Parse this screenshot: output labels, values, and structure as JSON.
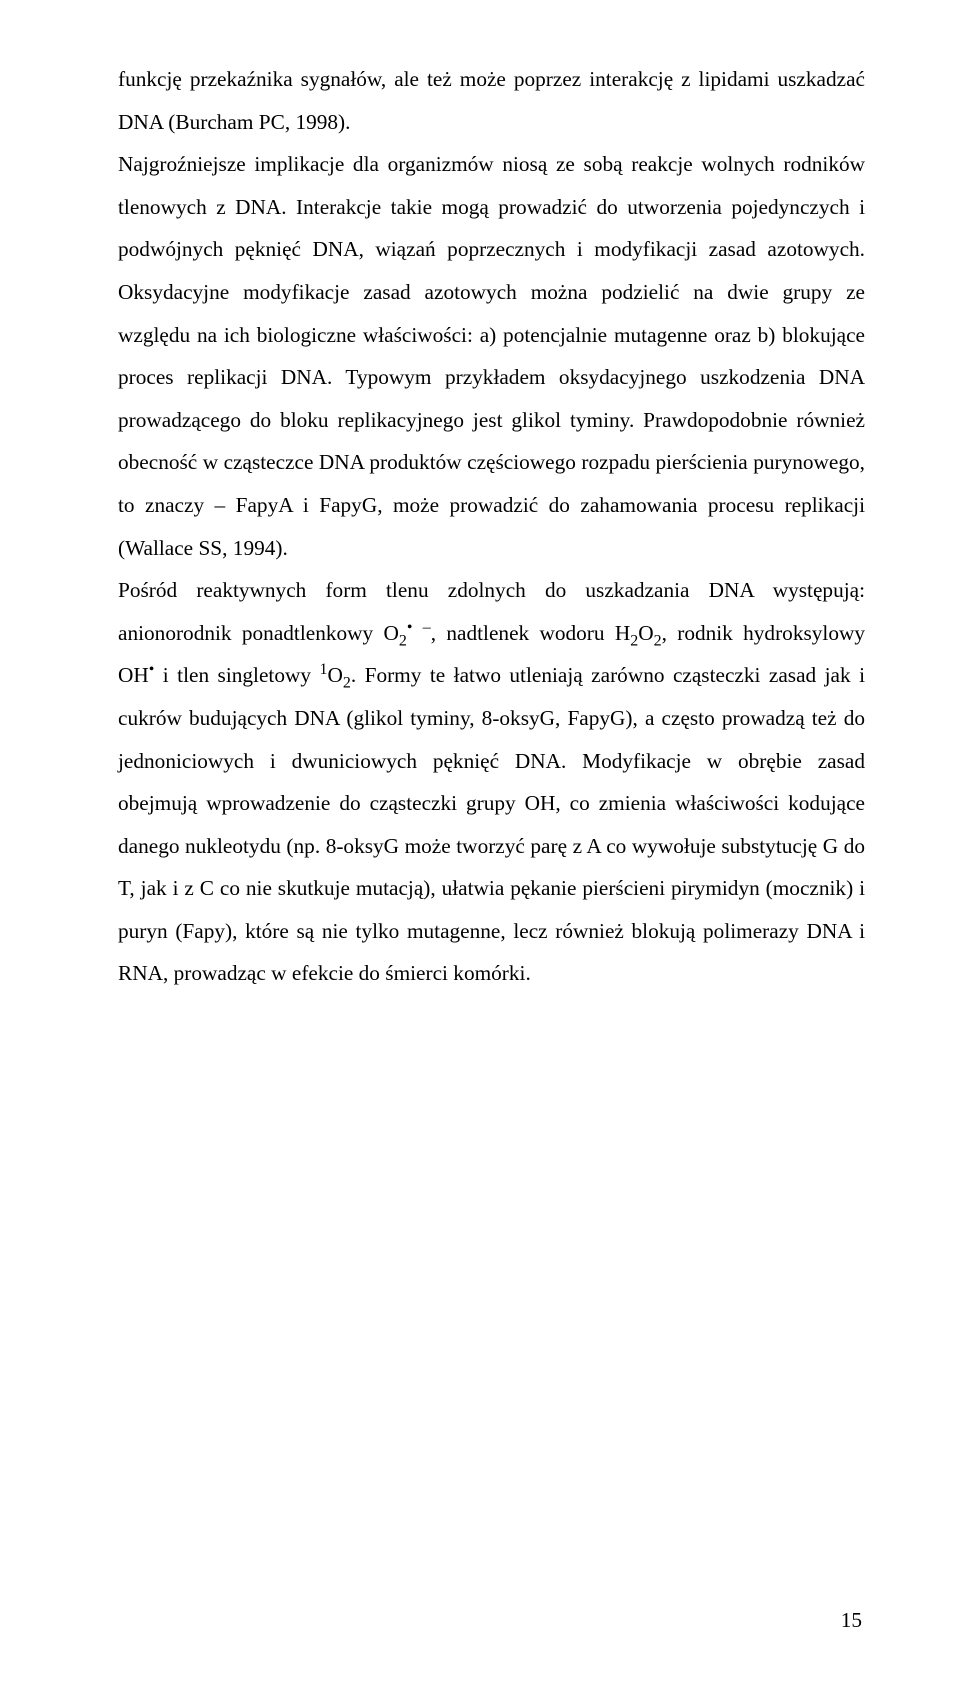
{
  "paragraph": "funkcję przekaźnika sygnałów, ale też może poprzez interakcję z lipidami uszkadzać DNA (Burcham PC, 1998).",
  "p2a": "Najgroźniejsze implikacje dla organizmów niosą ze sobą reakcje wolnych rodników tlenowych z DNA. Interakcje takie mogą prowadzić do utworzenia pojedynczych i podwójnych pęknięć DNA, wiązań poprzecznych i modyfikacji zasad azotowych. Oksydacyjne modyfikacje zasad azotowych można podzielić na dwie grupy ze względu na ich biologiczne właściwości: a) potencjalnie mutagenne oraz b) blokujące proces replikacji DNA. Typowym przykładem oksydacyjnego uszkodzenia DNA prowadzącego do bloku replikacyjnego jest glikol tyminy. Prawdopodobnie również obecność w cząsteczce DNA produktów częściowego rozpadu pierścienia purynowego, to znaczy – FapyA i FapyG, może prowadzić do zahamowania procesu replikacji (Wallace SS, 1994).",
  "p3_1": "Pośród reaktywnych form tlenu zdolnych do uszkadzania DNA występują: anionorodnik ponadtlenkowy O",
  "p3_2": ", nadtlenek wodoru H",
  "p3_3": "O",
  "p3_4": ", rodnik hydroksylowy OH",
  "p3_5": " i tlen singletowy ",
  "p3_6": "O",
  "p3_7": ". Formy te łatwo utleniają zarówno cząsteczki zasad jak i cukrów budujących DNA (glikol tyminy, 8-oksyG, FapyG), a często prowadzą też do jednoniciowych i dwuniciowych pęknięć DNA. Modyfikacje w obrębie zasad obejmują wprowadzenie do cząsteczki grupy OH, co zmienia właściwości kodujące danego nukleotydu (np. 8-oksyG może tworzyć parę z A co wywołuje substytucję G do T, jak i z C co nie skutkuje mutacją), ułatwia pękanie pierścieni pirymidyn (mocznik) i puryn (Fapy), które są nie tylko mutagenne, lecz również blokują polimerazy DNA i RNA, prowadząc w efekcie do śmierci komórki.",
  "sub2": "2",
  "supdot": "•",
  "supminus": "–",
  "sup1": "1",
  "pageNumber": "15"
}
